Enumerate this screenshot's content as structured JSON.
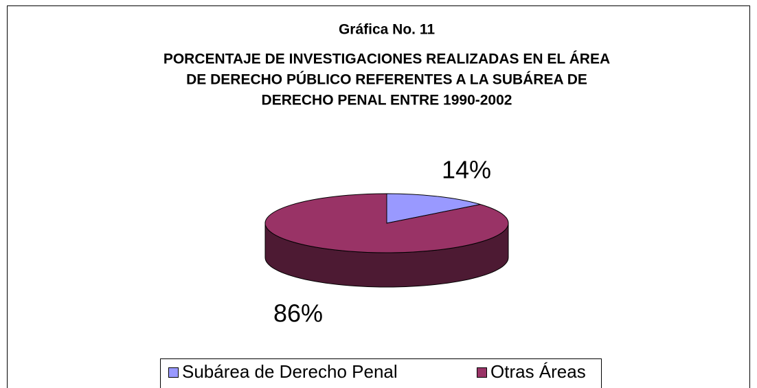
{
  "chart_data": {
    "type": "pie",
    "title": [
      "Gráfica No. 11",
      "PORCENTAJE DE INVESTIGACIONES REALIZADAS EN EL ÁREA",
      "DE DERECHO PÚBLICO REFERENTES A LA SUBÁREA DE",
      "DERECHO PENAL ENTRE 1990-2002"
    ],
    "categories": [
      "Subárea de Derecho Penal",
      "Otras Áreas"
    ],
    "values": [
      14,
      86
    ],
    "value_labels": [
      "14%",
      "86%"
    ],
    "colors": [
      "#9999ff",
      "#993366"
    ],
    "legend": "bottom"
  }
}
